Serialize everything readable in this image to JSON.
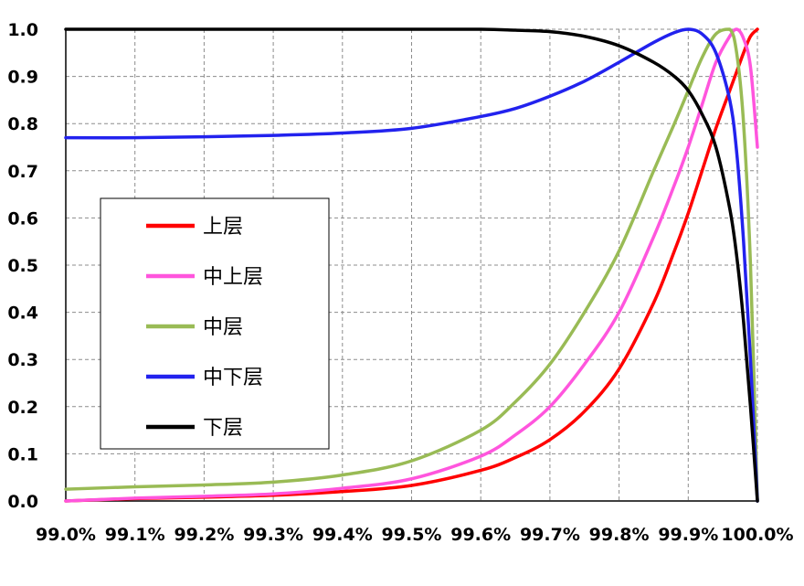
{
  "chart_data": {
    "type": "line",
    "title": "",
    "xlabel": "",
    "ylabel": "",
    "xlim": [
      99.0,
      100.0
    ],
    "ylim": [
      0.0,
      1.0
    ],
    "grid": true,
    "legend_position": "left-middle",
    "x_ticks": [
      "99.0%",
      "99.1%",
      "99.2%",
      "99.3%",
      "99.4%",
      "99.5%",
      "99.6%",
      "99.7%",
      "99.8%",
      "99.9%",
      "100.0%"
    ],
    "y_ticks": [
      "0.0",
      "0.1",
      "0.2",
      "0.3",
      "0.4",
      "0.5",
      "0.6",
      "0.7",
      "0.8",
      "0.9",
      "1.0"
    ],
    "x": [
      99.0,
      99.1,
      99.2,
      99.3,
      99.4,
      99.5,
      99.6,
      99.65,
      99.7,
      99.75,
      99.8,
      99.85,
      99.88,
      99.9,
      99.92,
      99.94,
      99.96,
      99.97,
      99.98,
      99.99,
      100.0
    ],
    "series": [
      {
        "name": "上层",
        "color": "#ff0000",
        "values": [
          0.0,
          0.005,
          0.008,
          0.012,
          0.02,
          0.033,
          0.065,
          0.092,
          0.13,
          0.19,
          0.28,
          0.42,
          0.53,
          0.61,
          0.7,
          0.79,
          0.87,
          0.91,
          0.95,
          0.985,
          1.0
        ]
      },
      {
        "name": "中上层",
        "color": "#ff55dd",
        "values": [
          0.0,
          0.006,
          0.01,
          0.015,
          0.027,
          0.047,
          0.095,
          0.14,
          0.2,
          0.29,
          0.4,
          0.56,
          0.67,
          0.75,
          0.84,
          0.93,
          0.985,
          1.0,
          0.98,
          0.92,
          0.75
        ]
      },
      {
        "name": "中层",
        "color": "#99bb55",
        "values": [
          0.025,
          0.03,
          0.034,
          0.04,
          0.055,
          0.085,
          0.15,
          0.21,
          0.29,
          0.4,
          0.53,
          0.7,
          0.8,
          0.87,
          0.94,
          0.99,
          1.0,
          0.95,
          0.8,
          0.5,
          0.0
        ]
      },
      {
        "name": "中下层",
        "color": "#2222ee",
        "values": [
          0.77,
          0.77,
          0.772,
          0.775,
          0.78,
          0.79,
          0.815,
          0.832,
          0.858,
          0.89,
          0.93,
          0.972,
          0.993,
          1.0,
          0.99,
          0.95,
          0.85,
          0.74,
          0.55,
          0.3,
          0.0
        ]
      },
      {
        "name": "下层",
        "color": "#000000",
        "values": [
          1.0,
          1.0,
          1.0,
          1.0,
          1.0,
          1.0,
          1.0,
          0.998,
          0.995,
          0.985,
          0.965,
          0.93,
          0.9,
          0.87,
          0.82,
          0.75,
          0.62,
          0.52,
          0.38,
          0.2,
          0.0
        ]
      }
    ]
  }
}
